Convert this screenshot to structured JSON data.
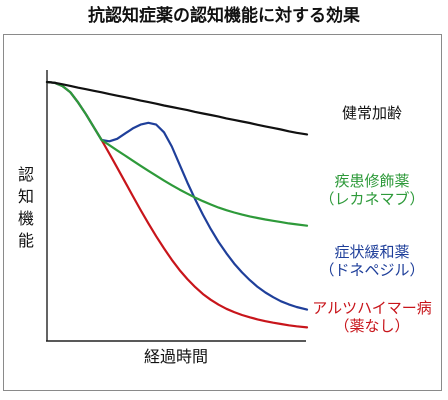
{
  "chart_data": {
    "type": "line",
    "title": "抗認知症薬の認知機能に対する効果",
    "xlabel": "経過時間",
    "ylabel": "認知機能",
    "axis_ticks": "none",
    "grid": false,
    "x": [
      0,
      0.03,
      0.06,
      0.09,
      0.12,
      0.15,
      0.18,
      0.21,
      0.24,
      0.27,
      0.3,
      0.33,
      0.36,
      0.39,
      0.42,
      0.45,
      0.48,
      0.51,
      0.54,
      0.57,
      0.6,
      0.63,
      0.66,
      0.69,
      0.72,
      0.75,
      0.78,
      0.81,
      0.84,
      0.87,
      0.9,
      0.93,
      0.96,
      1.0
    ],
    "ylim": [
      0,
      1
    ],
    "series": [
      {
        "name": "健常加齢",
        "color": "#111111",
        "values": [
          1.0,
          0.997,
          0.991,
          0.985,
          0.978,
          0.972,
          0.966,
          0.96,
          0.953,
          0.947,
          0.941,
          0.935,
          0.928,
          0.922,
          0.916,
          0.909,
          0.903,
          0.897,
          0.891,
          0.884,
          0.878,
          0.872,
          0.866,
          0.859,
          0.853,
          0.847,
          0.841,
          0.834,
          0.828,
          0.822,
          0.816,
          0.809,
          0.803,
          0.797
        ]
      },
      {
        "name": "疾患修飾薬（レカネマブ）",
        "color": "#2e9a3a",
        "values": [
          1.0,
          0.997,
          0.984,
          0.96,
          0.92,
          0.875,
          0.825,
          0.775,
          0.755,
          0.735,
          0.715,
          0.695,
          0.675,
          0.656,
          0.637,
          0.618,
          0.6,
          0.583,
          0.567,
          0.552,
          0.538,
          0.525,
          0.513,
          0.503,
          0.494,
          0.486,
          0.479,
          0.473,
          0.467,
          0.462,
          0.457,
          0.452,
          0.448,
          0.443
        ]
      },
      {
        "name": "症状緩和薬（ドネペジル）",
        "color": "#1f3f9a",
        "values": [
          1.0,
          0.997,
          0.984,
          0.96,
          0.92,
          0.875,
          0.825,
          0.775,
          0.77,
          0.78,
          0.8,
          0.82,
          0.835,
          0.842,
          0.835,
          0.805,
          0.75,
          0.68,
          0.61,
          0.545,
          0.485,
          0.43,
          0.38,
          0.336,
          0.296,
          0.262,
          0.232,
          0.206,
          0.184,
          0.166,
          0.15,
          0.138,
          0.128,
          0.118
        ]
      },
      {
        "name": "アルツハイマー病（薬なし）",
        "color": "#c8151b",
        "values": [
          1.0,
          0.997,
          0.984,
          0.96,
          0.92,
          0.875,
          0.825,
          0.775,
          0.722,
          0.668,
          0.613,
          0.558,
          0.504,
          0.452,
          0.402,
          0.355,
          0.311,
          0.271,
          0.236,
          0.205,
          0.178,
          0.156,
          0.137,
          0.121,
          0.108,
          0.097,
          0.088,
          0.08,
          0.073,
          0.067,
          0.062,
          0.057,
          0.053,
          0.049
        ]
      }
    ],
    "legend": [
      {
        "lines": [
          "健常加齢"
        ],
        "color": "#111111"
      },
      {
        "lines": [
          "疾患修飾薬",
          "（レカネマブ）"
        ],
        "color": "#2e9a3a"
      },
      {
        "lines": [
          "症状緩和薬",
          "（ドネペジル）"
        ],
        "color": "#1f3f9a"
      },
      {
        "lines": [
          "アルツハイマー病",
          "（薬なし）"
        ],
        "color": "#c8151b"
      }
    ]
  }
}
